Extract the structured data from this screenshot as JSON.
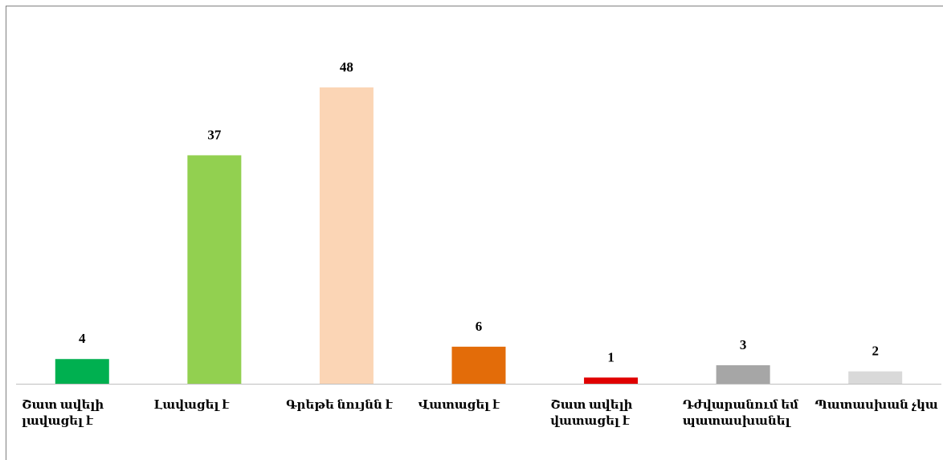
{
  "chart_data": {
    "type": "bar",
    "categories": [
      "Շատ ավելի լավացել է",
      "Լավացել է",
      "Գրեթե նույնն է",
      "Վատացել է",
      "Շատ ավելի վատացել է",
      "Դժվարանում եմ պատասխանել",
      "Պատասխան չկա"
    ],
    "values": [
      4,
      37,
      48,
      6,
      1,
      3,
      2
    ],
    "colors": [
      "#00b050",
      "#92d050",
      "#fbd5b5",
      "#e36c09",
      "#e00000",
      "#a6a6a6",
      "#d9d9d9"
    ],
    "ylim": [
      0,
      55
    ]
  }
}
